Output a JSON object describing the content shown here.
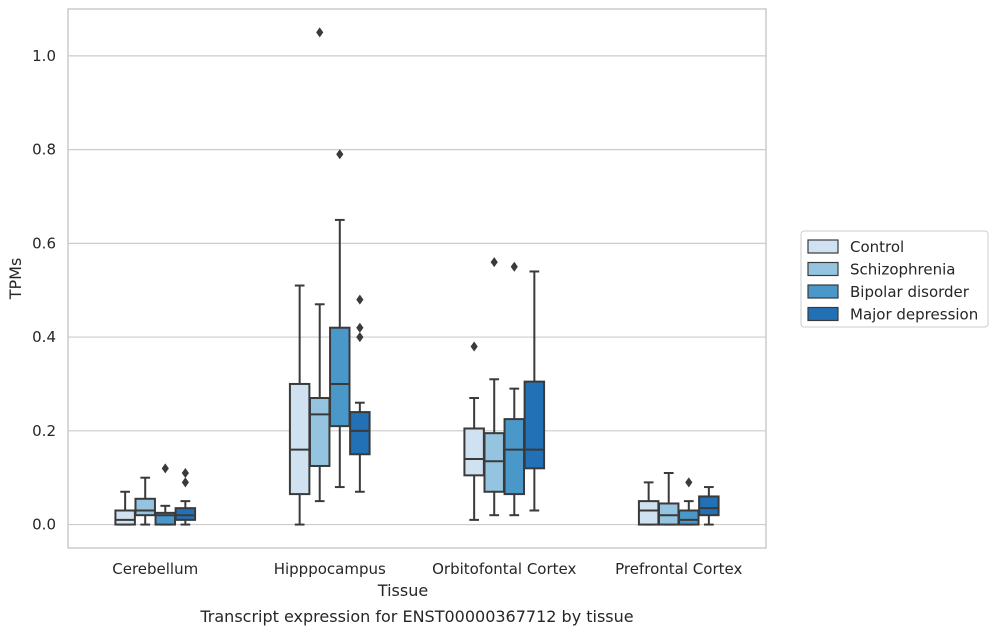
{
  "chart_data": {
    "type": "box",
    "title": "",
    "caption": "Transcript expression for ENST00000367712 by tissue",
    "xlabel": "Tissue",
    "ylabel": "TPMs",
    "ylim": [
      -0.05,
      1.1
    ],
    "yticks": [
      "0.0",
      "0.2",
      "0.4",
      "0.6",
      "0.8",
      "1.0"
    ],
    "grid": "horizontal",
    "legend_position": "right",
    "categories": [
      "Cerebellum",
      "Hipppocampus",
      "Orbitofontal Cortex",
      "Prefrontal Cortex"
    ],
    "series": [
      {
        "name": "Control",
        "color": "#d0e1f2",
        "boxes": [
          {
            "whislo": 0.0,
            "q1": 0.0,
            "med": 0.01,
            "q3": 0.03,
            "whishi": 0.07,
            "fliers": []
          },
          {
            "whislo": 0.0,
            "q1": 0.065,
            "med": 0.16,
            "q3": 0.3,
            "whishi": 0.51,
            "fliers": []
          },
          {
            "whislo": 0.01,
            "q1": 0.105,
            "med": 0.14,
            "q3": 0.205,
            "whishi": 0.27,
            "fliers": [
              0.38
            ]
          },
          {
            "whislo": 0.0,
            "q1": 0.0,
            "med": 0.03,
            "q3": 0.05,
            "whishi": 0.09,
            "fliers": []
          }
        ]
      },
      {
        "name": "Schizophrenia",
        "color": "#94c4df",
        "boxes": [
          {
            "whislo": 0.0,
            "q1": 0.02,
            "med": 0.03,
            "q3": 0.055,
            "whishi": 0.1,
            "fliers": []
          },
          {
            "whislo": 0.05,
            "q1": 0.125,
            "med": 0.235,
            "q3": 0.27,
            "whishi": 0.47,
            "fliers": [
              1.05
            ]
          },
          {
            "whislo": 0.02,
            "q1": 0.07,
            "med": 0.135,
            "q3": 0.195,
            "whishi": 0.31,
            "fliers": [
              0.56
            ]
          },
          {
            "whislo": 0.0,
            "q1": 0.0,
            "med": 0.02,
            "q3": 0.045,
            "whishi": 0.11,
            "fliers": []
          }
        ]
      },
      {
        "name": "Bipolar disorder",
        "color": "#4a98c9",
        "boxes": [
          {
            "whislo": 0.0,
            "q1": 0.0,
            "med": 0.02,
            "q3": 0.025,
            "whishi": 0.04,
            "fliers": [
              0.12
            ]
          },
          {
            "whislo": 0.08,
            "q1": 0.21,
            "med": 0.3,
            "q3": 0.42,
            "whishi": 0.65,
            "fliers": [
              0.79
            ]
          },
          {
            "whislo": 0.02,
            "q1": 0.065,
            "med": 0.16,
            "q3": 0.225,
            "whishi": 0.29,
            "fliers": [
              0.55
            ]
          },
          {
            "whislo": 0.0,
            "q1": 0.0,
            "med": 0.01,
            "q3": 0.03,
            "whishi": 0.05,
            "fliers": [
              0.09
            ]
          }
        ]
      },
      {
        "name": "Major depression",
        "color": "#2270b5",
        "boxes": [
          {
            "whislo": 0.0,
            "q1": 0.01,
            "med": 0.02,
            "q3": 0.035,
            "whishi": 0.05,
            "fliers": [
              0.09,
              0.11
            ]
          },
          {
            "whislo": 0.07,
            "q1": 0.15,
            "med": 0.2,
            "q3": 0.24,
            "whishi": 0.26,
            "fliers": [
              0.4,
              0.42,
              0.48
            ]
          },
          {
            "whislo": 0.03,
            "q1": 0.12,
            "med": 0.16,
            "q3": 0.305,
            "whishi": 0.54,
            "fliers": []
          },
          {
            "whislo": 0.0,
            "q1": 0.02,
            "med": 0.035,
            "q3": 0.06,
            "whishi": 0.08,
            "fliers": []
          }
        ]
      }
    ]
  }
}
